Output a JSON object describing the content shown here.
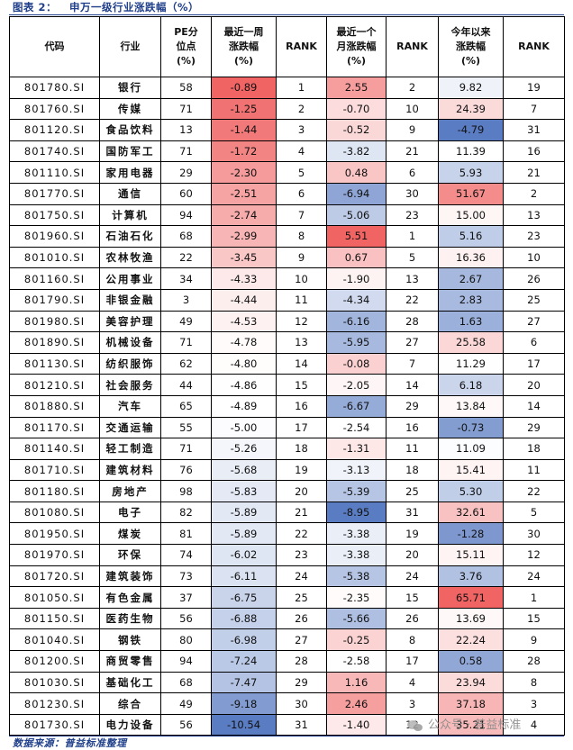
{
  "caption": {
    "label": "图表 2：",
    "title": "申万一级行业涨跌幅（%）"
  },
  "headers": [
    "代码",
    "行业",
    "PE分位点(%)",
    "最近一周涨跌幅(%)",
    "RANK",
    "最近一个月涨跌幅(%)",
    "RANK",
    "今年以来涨跌幅(%)",
    "RANK"
  ],
  "colors": {
    "pos_max": "#f06464",
    "neg_max": "#5a7cc2",
    "neutral": "#ffffff",
    "border": "#000000",
    "accent": "#1f3f8a"
  },
  "rows": [
    {
      "code": "801780.SI",
      "name": "银行",
      "pe": "58",
      "week": "-0.89",
      "week_rank": "1",
      "month": "2.55",
      "month_rank": "2",
      "ytd": "9.82",
      "ytd_rank": "19"
    },
    {
      "code": "801760.SI",
      "name": "传媒",
      "pe": "71",
      "week": "-1.25",
      "week_rank": "2",
      "month": "-0.70",
      "month_rank": "10",
      "ytd": "24.39",
      "ytd_rank": "7"
    },
    {
      "code": "801120.SI",
      "name": "食品饮料",
      "pe": "13",
      "week": "-1.44",
      "week_rank": "3",
      "month": "-0.52",
      "month_rank": "9",
      "ytd": "-4.79",
      "ytd_rank": "31"
    },
    {
      "code": "801740.SI",
      "name": "国防军工",
      "pe": "71",
      "week": "-1.72",
      "week_rank": "4",
      "month": "-3.82",
      "month_rank": "21",
      "ytd": "11.39",
      "ytd_rank": "16"
    },
    {
      "code": "801110.SI",
      "name": "家用电器",
      "pe": "29",
      "week": "-2.30",
      "week_rank": "5",
      "month": "0.48",
      "month_rank": "6",
      "ytd": "5.93",
      "ytd_rank": "21"
    },
    {
      "code": "801770.SI",
      "name": "通信",
      "pe": "60",
      "week": "-2.51",
      "week_rank": "6",
      "month": "-6.94",
      "month_rank": "30",
      "ytd": "51.67",
      "ytd_rank": "2"
    },
    {
      "code": "801750.SI",
      "name": "计算机",
      "pe": "94",
      "week": "-2.74",
      "week_rank": "7",
      "month": "-5.06",
      "month_rank": "23",
      "ytd": "15.00",
      "ytd_rank": "13"
    },
    {
      "code": "801960.SI",
      "name": "石油石化",
      "pe": "68",
      "week": "-2.99",
      "week_rank": "8",
      "month": "5.51",
      "month_rank": "1",
      "ytd": "5.16",
      "ytd_rank": "23"
    },
    {
      "code": "801010.SI",
      "name": "农林牧渔",
      "pe": "22",
      "week": "-3.45",
      "week_rank": "9",
      "month": "0.67",
      "month_rank": "5",
      "ytd": "16.36",
      "ytd_rank": "10"
    },
    {
      "code": "801160.SI",
      "name": "公用事业",
      "pe": "34",
      "week": "-4.33",
      "week_rank": "10",
      "month": "-1.90",
      "month_rank": "13",
      "ytd": "2.67",
      "ytd_rank": "26"
    },
    {
      "code": "801790.SI",
      "name": "非银金融",
      "pe": "3",
      "week": "-4.44",
      "week_rank": "11",
      "month": "-4.34",
      "month_rank": "22",
      "ytd": "2.83",
      "ytd_rank": "25"
    },
    {
      "code": "801980.SI",
      "name": "美容护理",
      "pe": "49",
      "week": "-4.53",
      "week_rank": "12",
      "month": "-6.16",
      "month_rank": "28",
      "ytd": "1.63",
      "ytd_rank": "27"
    },
    {
      "code": "801890.SI",
      "name": "机械设备",
      "pe": "71",
      "week": "-4.78",
      "week_rank": "13",
      "month": "-5.95",
      "month_rank": "27",
      "ytd": "25.58",
      "ytd_rank": "6"
    },
    {
      "code": "801130.SI",
      "name": "纺织服饰",
      "pe": "62",
      "week": "-4.80",
      "week_rank": "14",
      "month": "-0.08",
      "month_rank": "7",
      "ytd": "11.29",
      "ytd_rank": "17"
    },
    {
      "code": "801210.SI",
      "name": "社会服务",
      "pe": "44",
      "week": "-4.86",
      "week_rank": "15",
      "month": "-2.05",
      "month_rank": "14",
      "ytd": "6.18",
      "ytd_rank": "20"
    },
    {
      "code": "801880.SI",
      "name": "汽车",
      "pe": "65",
      "week": "-4.89",
      "week_rank": "16",
      "month": "-6.67",
      "month_rank": "29",
      "ytd": "13.84",
      "ytd_rank": "14"
    },
    {
      "code": "801170.SI",
      "name": "交通运输",
      "pe": "55",
      "week": "-5.00",
      "week_rank": "17",
      "month": "-2.54",
      "month_rank": "16",
      "ytd": "-0.73",
      "ytd_rank": "29"
    },
    {
      "code": "801140.SI",
      "name": "轻工制造",
      "pe": "71",
      "week": "-5.26",
      "week_rank": "18",
      "month": "-1.31",
      "month_rank": "11",
      "ytd": "11.09",
      "ytd_rank": "18"
    },
    {
      "code": "801710.SI",
      "name": "建筑材料",
      "pe": "76",
      "week": "-5.68",
      "week_rank": "19",
      "month": "-3.13",
      "month_rank": "18",
      "ytd": "15.41",
      "ytd_rank": "11"
    },
    {
      "code": "801180.SI",
      "name": "房地产",
      "pe": "98",
      "week": "-5.83",
      "week_rank": "20",
      "month": "-5.39",
      "month_rank": "25",
      "ytd": "5.30",
      "ytd_rank": "22"
    },
    {
      "code": "801080.SI",
      "name": "电子",
      "pe": "82",
      "week": "-5.89",
      "week_rank": "21",
      "month": "-8.95",
      "month_rank": "31",
      "ytd": "32.61",
      "ytd_rank": "5"
    },
    {
      "code": "801950.SI",
      "name": "煤炭",
      "pe": "81",
      "week": "-5.89",
      "week_rank": "22",
      "month": "-3.38",
      "month_rank": "19",
      "ytd": "-1.28",
      "ytd_rank": "30"
    },
    {
      "code": "801970.SI",
      "name": "环保",
      "pe": "74",
      "week": "-6.02",
      "week_rank": "23",
      "month": "-3.38",
      "month_rank": "20",
      "ytd": "15.11",
      "ytd_rank": "12"
    },
    {
      "code": "801720.SI",
      "name": "建筑装饰",
      "pe": "73",
      "week": "-6.11",
      "week_rank": "24",
      "month": "-5.38",
      "month_rank": "24",
      "ytd": "3.76",
      "ytd_rank": "24"
    },
    {
      "code": "801050.SI",
      "name": "有色金属",
      "pe": "37",
      "week": "-6.75",
      "week_rank": "25",
      "month": "-2.35",
      "month_rank": "15",
      "ytd": "65.71",
      "ytd_rank": "1"
    },
    {
      "code": "801150.SI",
      "name": "医药生物",
      "pe": "56",
      "week": "-6.88",
      "week_rank": "26",
      "month": "-5.66",
      "month_rank": "26",
      "ytd": "13.69",
      "ytd_rank": "15"
    },
    {
      "code": "801040.SI",
      "name": "钢铁",
      "pe": "80",
      "week": "-6.98",
      "week_rank": "27",
      "month": "-0.25",
      "month_rank": "8",
      "ytd": "22.24",
      "ytd_rank": "9"
    },
    {
      "code": "801200.SI",
      "name": "商贸零售",
      "pe": "94",
      "week": "-7.24",
      "week_rank": "28",
      "month": "-2.58",
      "month_rank": "17",
      "ytd": "0.58",
      "ytd_rank": "28"
    },
    {
      "code": "801030.SI",
      "name": "基础化工",
      "pe": "68",
      "week": "-7.47",
      "week_rank": "29",
      "month": "1.16",
      "month_rank": "4",
      "ytd": "23.94",
      "ytd_rank": "8"
    },
    {
      "code": "801230.SI",
      "name": "综合",
      "pe": "49",
      "week": "-9.18",
      "week_rank": "30",
      "month": "2.46",
      "month_rank": "3",
      "ytd": "37.18",
      "ytd_rank": "3"
    },
    {
      "code": "801730.SI",
      "name": "电力设备",
      "pe": "56",
      "week": "-10.54",
      "week_rank": "31",
      "month": "-1.40",
      "month_rank": "12",
      "ytd": "35.21",
      "ytd_rank": "4"
    }
  ],
  "source": "数据来源：普益标准整理",
  "watermark": "公众号 · 普益标准"
}
